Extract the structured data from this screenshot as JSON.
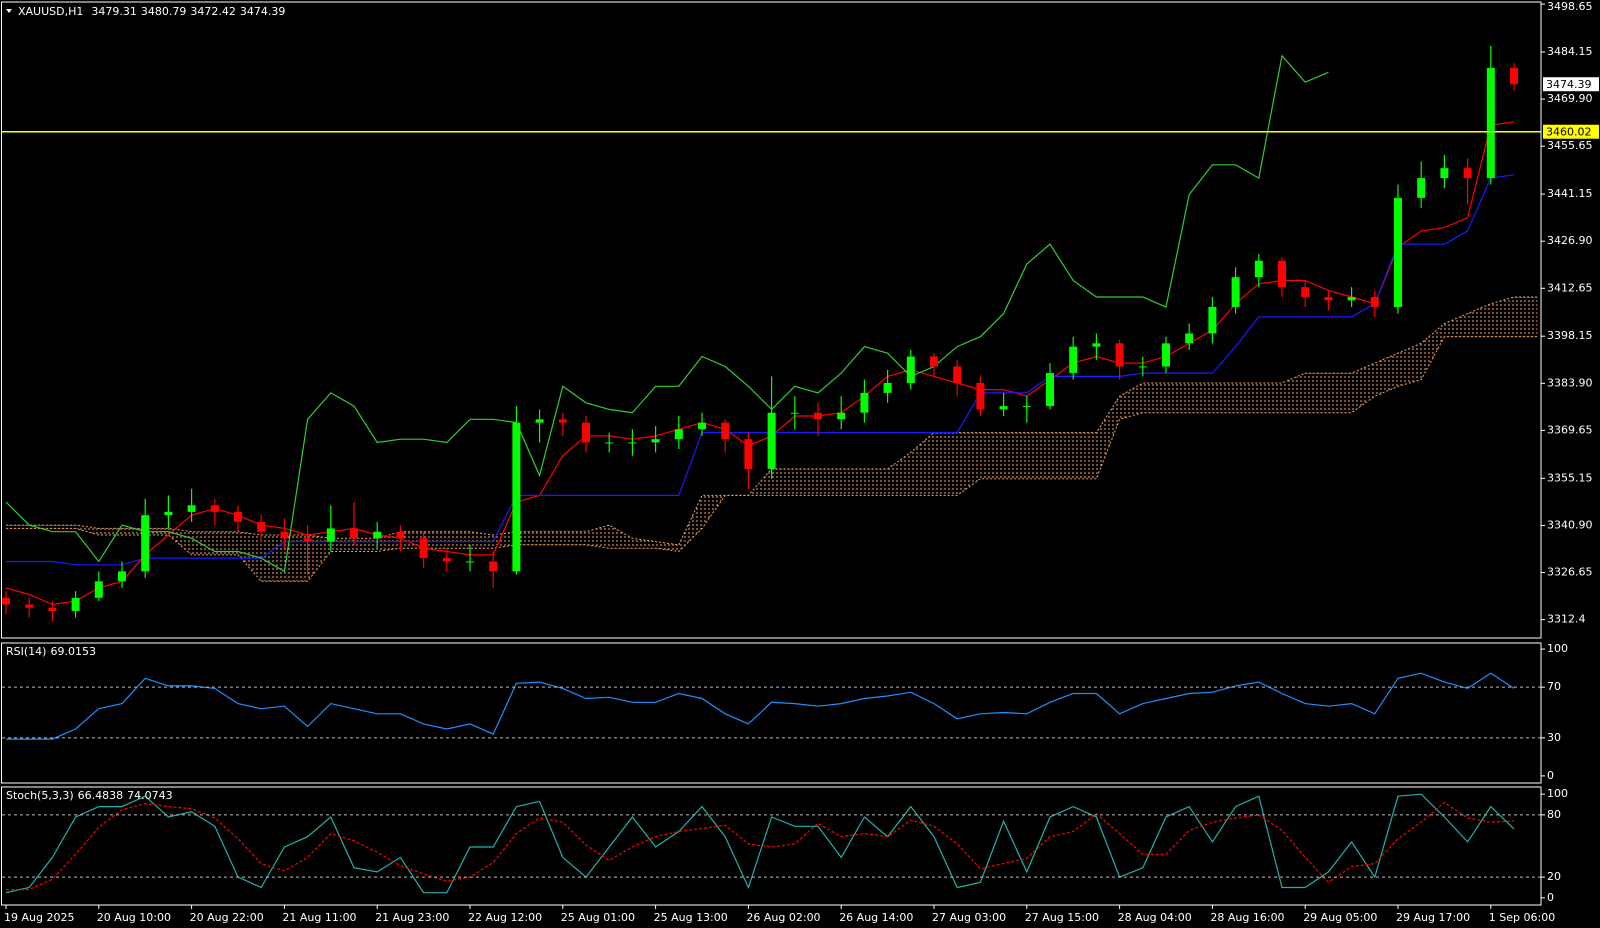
{
  "chart_data": [
    {
      "type": "candlestick",
      "title": "XAUUSD,H1",
      "categories": [
        "19 Aug 2025",
        null,
        null,
        null,
        "20 Aug 10:00",
        null,
        null,
        null,
        "20 Aug 22:00",
        null,
        null,
        null,
        "21 Aug 11:00",
        null,
        null,
        null,
        "21 Aug 23:00",
        null,
        null,
        null,
        "22 Aug 12:00",
        null,
        null,
        null,
        "25 Aug 01:00",
        null,
        null,
        null,
        "25 Aug 13:00",
        null,
        null,
        null,
        "26 Aug 02:00",
        null,
        null,
        null,
        "26 Aug 14:00",
        null,
        null,
        null,
        "27 Aug 03:00",
        null,
        null,
        null,
        "27 Aug 15:00",
        null,
        null,
        null,
        "28 Aug 04:00",
        null,
        null,
        null,
        "28 Aug 16:00",
        null,
        null,
        null,
        "29 Aug 05:00",
        null,
        null,
        null,
        "29 Aug 17:00",
        null,
        null,
        null,
        "1 Sep 06:00",
        null
      ],
      "ohlc": [
        [
          3319,
          3321,
          3314,
          3317
        ],
        [
          3317,
          3319,
          3313,
          3316
        ],
        [
          3316,
          3318,
          3312,
          3315
        ],
        [
          3315,
          3321,
          3313,
          3319
        ],
        [
          3319,
          3327,
          3318,
          3324
        ],
        [
          3324,
          3330,
          3322,
          3327
        ],
        [
          3327,
          3349,
          3325,
          3344
        ],
        [
          3344,
          3350,
          3340,
          3345
        ],
        [
          3345,
          3352,
          3342,
          3347
        ],
        [
          3347,
          3349,
          3341,
          3345
        ],
        [
          3345,
          3347,
          3339,
          3342
        ],
        [
          3342,
          3344,
          3336,
          3339
        ],
        [
          3339,
          3343,
          3334,
          3337
        ],
        [
          3337,
          3341,
          3326,
          3336
        ],
        [
          3336,
          3347,
          3333,
          3340
        ],
        [
          3340,
          3348,
          3335,
          3337
        ],
        [
          3337,
          3342,
          3334,
          3339
        ],
        [
          3339,
          3341,
          3333,
          3337
        ],
        [
          3337,
          3339,
          3328,
          3331
        ],
        [
          3331,
          3334,
          3327,
          3330
        ],
        [
          3330,
          3335,
          3327,
          3330
        ],
        [
          3330,
          3333,
          3322,
          3327
        ],
        [
          3327,
          3377,
          3326,
          3372
        ],
        [
          3372,
          3376,
          3366,
          3373
        ],
        [
          3373,
          3375,
          3368,
          3372
        ],
        [
          3372,
          3374,
          3363,
          3366
        ],
        [
          3366,
          3369,
          3363,
          3366
        ],
        [
          3366,
          3370,
          3362,
          3366
        ],
        [
          3366,
          3371,
          3363,
          3367
        ],
        [
          3367,
          3374,
          3364,
          3370
        ],
        [
          3370,
          3375,
          3368,
          3372
        ],
        [
          3372,
          3373,
          3363,
          3367
        ],
        [
          3367,
          3369,
          3352,
          3358
        ],
        [
          3358,
          3386,
          3355,
          3375
        ],
        [
          3375,
          3380,
          3370,
          3375
        ],
        [
          3375,
          3378,
          3368,
          3373
        ],
        [
          3373,
          3380,
          3370,
          3375
        ],
        [
          3375,
          3385,
          3372,
          3381
        ],
        [
          3381,
          3388,
          3378,
          3384
        ],
        [
          3384,
          3394,
          3382,
          3392
        ],
        [
          3392,
          3393,
          3386,
          3389
        ],
        [
          3389,
          3391,
          3380,
          3384
        ],
        [
          3384,
          3386,
          3374,
          3376
        ],
        [
          3376,
          3381,
          3374,
          3377
        ],
        [
          3377,
          3380,
          3372,
          3377
        ],
        [
          3377,
          3390,
          3376,
          3387
        ],
        [
          3387,
          3398,
          3385,
          3395
        ],
        [
          3395,
          3399,
          3391,
          3396
        ],
        [
          3396,
          3397,
          3385,
          3389
        ],
        [
          3389,
          3392,
          3386,
          3389
        ],
        [
          3389,
          3398,
          3387,
          3396
        ],
        [
          3396,
          3402,
          3394,
          3399
        ],
        [
          3399,
          3410,
          3396,
          3407
        ],
        [
          3407,
          3419,
          3405,
          3416
        ],
        [
          3416,
          3423,
          3413,
          3421
        ],
        [
          3421,
          3422,
          3410,
          3413
        ],
        [
          3413,
          3415,
          3407,
          3410
        ],
        [
          3410,
          3412,
          3406,
          3409
        ],
        [
          3409,
          3413,
          3407,
          3410
        ],
        [
          3410,
          3412,
          3404,
          3407
        ],
        [
          3407,
          3444,
          3405,
          3440
        ],
        [
          3440,
          3451,
          3437,
          3446
        ],
        [
          3446,
          3453,
          3443,
          3449
        ],
        [
          3449,
          3452,
          3438,
          3446
        ],
        [
          3446,
          3486,
          3444,
          3479.31
        ],
        [
          3479.31,
          3480.79,
          3472.42,
          3474.39
        ]
      ],
      "up_color": "#00ff00",
      "down_color": "#ff0000",
      "series": [
        {
          "color": "#ff0000",
          "values": [
            3322,
            3320,
            3317,
            3318,
            3322,
            3324,
            3332,
            3338,
            3344,
            3346,
            3344,
            3341,
            3340,
            3338,
            3339,
            3340,
            3338,
            3337,
            3334,
            3333,
            3332,
            3332,
            3348,
            3350,
            3362,
            3368,
            3368,
            3367,
            3368,
            3370,
            3372,
            3370,
            3365,
            3368,
            3374,
            3374,
            3375,
            3380,
            3386,
            3388,
            3386,
            3384,
            3382,
            3382,
            3380,
            3385,
            3390,
            3392,
            3390,
            3390,
            3392,
            3396,
            3400,
            3408,
            3414,
            3415,
            3415,
            3412,
            3410,
            3408,
            3425,
            3430,
            3431,
            3434,
            3462,
            3463
          ]
        },
        {
          "color": "#1a1aff",
          "values": [
            3330,
            3330,
            3330,
            3329,
            3329,
            3329,
            3331,
            3331,
            3331,
            3331,
            3331,
            3331,
            3336,
            3336,
            3336,
            3336,
            3336,
            3336,
            3336,
            3336,
            3336,
            3336,
            3350,
            3350,
            3350,
            3350,
            3350,
            3350,
            3350,
            3350,
            3369,
            3369,
            3369,
            3369,
            3369,
            3369,
            3369,
            3369,
            3369,
            3369,
            3369,
            3369,
            3381,
            3381,
            3381,
            3386,
            3386,
            3386,
            3386,
            3387,
            3387,
            3387,
            3387,
            3395,
            3404,
            3404,
            3404,
            3404,
            3404,
            3408,
            3426,
            3426,
            3426,
            3430,
            3446,
            3447
          ]
        },
        {
          "color": "#32cd32",
          "values": [
            3348,
            3341,
            3339,
            3339,
            3330,
            3341,
            3339,
            3339,
            3337,
            3333,
            3333,
            3331,
            3327,
            3373,
            3381,
            3377,
            3366,
            3367,
            3367,
            3366,
            3373,
            3373,
            3372,
            3356,
            3383,
            3378,
            3376,
            3375,
            3383,
            3383,
            3392,
            3389,
            3383,
            3376,
            3383,
            3381,
            3387,
            3395,
            3393,
            3386,
            3389,
            3395,
            3398,
            3405,
            3420,
            3426,
            3415,
            3410,
            3410,
            3410,
            3407,
            3441,
            3450,
            3450,
            3446,
            3483,
            3475,
            3478,
            null,
            null,
            null,
            null,
            null,
            null,
            null,
            null
          ]
        }
      ],
      "cloud": {
        "color": "#f4a460",
        "span_a": [
          3341,
          3341,
          3341,
          3341,
          3340,
          3340,
          3340,
          3340,
          3339,
          3339,
          3339,
          3338,
          3338,
          3338,
          3337,
          3337,
          3337,
          3339,
          3339,
          3339,
          3339,
          3338,
          3339,
          3339,
          3339,
          3339,
          3341,
          3337,
          3336,
          3335,
          3350,
          3350,
          3350,
          3358,
          3358,
          3358,
          3358,
          3358,
          3358,
          3363,
          3369,
          3369,
          3369,
          3369,
          3369,
          3369,
          3369,
          3369,
          3380,
          3384,
          3384,
          3384,
          3384,
          3384,
          3384,
          3384,
          3387,
          3387,
          3387,
          3390,
          3393,
          3396,
          3402,
          3405,
          3408,
          3410,
          3410
        ],
        "span_b": [
          3340,
          3340,
          3340,
          3340,
          3338,
          3338,
          3338,
          3338,
          3332,
          3332,
          3332,
          3324,
          3324,
          3324,
          3333,
          3333,
          3333,
          3334,
          3334,
          3334,
          3334,
          3334,
          3335,
          3335,
          3335,
          3335,
          3334,
          3334,
          3334,
          3333,
          3340,
          3350,
          3350,
          3350,
          3350,
          3350,
          3350,
          3350,
          3350,
          3350,
          3350,
          3350,
          3355,
          3355,
          3355,
          3355,
          3355,
          3355,
          3373,
          3375,
          3375,
          3375,
          3375,
          3375,
          3375,
          3375,
          3375,
          3375,
          3375,
          3380,
          3383,
          3385,
          3398,
          3398,
          3398,
          3398,
          3398
        ]
      },
      "level": 3460.02,
      "level_color": "#ffff00",
      "ylim": [
        3306.84,
        3499.27
      ],
      "yticks": [
        3498.65,
        3484.15,
        {
          "value": 3469.9,
          "label": "3469.90"
        },
        3455.65,
        3441.15,
        {
          "value": 3426.9,
          "label": "3426.90"
        },
        3412.65,
        3398.15,
        {
          "value": 3383.9,
          "label": "3383.90"
        },
        3369.65,
        3355.15,
        {
          "value": 3340.9,
          "label": "3340.90"
        },
        3326.65,
        3312.4
      ]
    },
    {
      "type": "line",
      "title": "RSI(14)",
      "series": [
        {
          "color": "#1e90ff",
          "values": [
            29,
            29,
            29,
            37,
            53,
            57,
            77,
            71,
            71,
            69,
            57,
            53,
            55,
            39,
            57,
            53,
            49,
            49,
            41,
            37,
            41,
            33,
            73,
            74,
            69,
            61,
            62,
            58,
            58,
            65,
            61,
            49,
            41,
            58,
            57,
            55,
            57,
            61,
            63,
            66,
            57,
            45,
            49,
            50,
            49,
            58,
            65,
            65,
            49,
            57,
            61,
            65,
            66,
            71,
            74,
            65,
            57,
            55,
            57,
            49,
            77,
            81,
            74,
            69,
            81,
            69.0153
          ]
        }
      ],
      "levels": [
        70,
        30
      ],
      "ylim": [
        -5.6,
        104.8
      ],
      "yticks": [
        100,
        70,
        30,
        0
      ]
    },
    {
      "type": "line",
      "title": "Stoch(5,3,3)",
      "series": [
        {
          "color": "#20b2aa",
          "values": [
            5,
            10,
            39,
            78,
            88,
            88,
            98,
            78,
            83,
            69,
            20,
            10,
            49,
            59,
            78,
            29,
            25,
            39,
            5,
            5,
            49,
            49,
            88,
            93,
            39,
            20,
            49,
            78,
            49,
            64,
            88,
            59,
            10,
            78,
            69,
            69,
            39,
            78,
            59,
            88,
            59,
            10,
            15,
            74,
            25,
            78,
            88,
            78,
            20,
            29,
            78,
            88,
            54,
            88,
            98,
            10,
            10,
            25,
            54,
            20,
            98,
            100,
            78,
            54,
            88,
            66.4838
          ]
        },
        {
          "color": "#ff0000",
          "dash": true,
          "values": [
            8,
            8,
            18,
            42,
            68,
            85,
            91,
            88,
            86,
            77,
            57,
            33,
            26,
            39,
            62,
            55,
            44,
            31,
            23,
            16,
            20,
            34,
            62,
            77,
            73,
            51,
            36,
            49,
            59,
            64,
            67,
            70,
            52,
            49,
            52,
            72,
            59,
            62,
            59,
            75,
            69,
            52,
            28,
            33,
            38,
            59,
            64,
            81,
            62,
            42,
            42,
            65,
            73,
            77,
            80,
            65,
            39,
            15,
            30,
            33,
            57,
            73,
            92,
            77,
            73,
            74.0743
          ]
        }
      ],
      "levels": [
        80,
        20
      ],
      "ylim": [
        -6.9,
        106.9
      ],
      "yticks": [
        100,
        80,
        20,
        0
      ]
    }
  ]
}
